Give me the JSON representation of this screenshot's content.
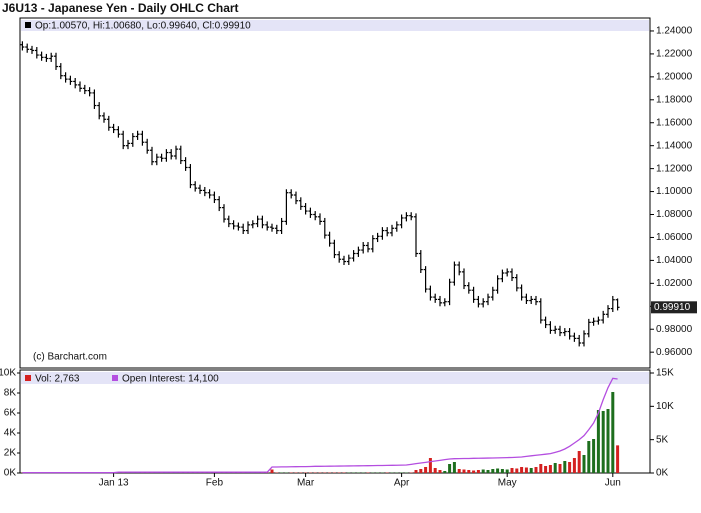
{
  "chart_data": [
    {
      "type": "ohlc",
      "title": "J6U13 - Japanese Yen - Daily OHLC Chart",
      "legend_text": "Op:1.00570, Hi:1.00680, Lo:0.99640, Cl:0.99910",
      "credit": "(c) Barchart.com",
      "last_price_label": "0.99910",
      "color": "#000000",
      "ylim": [
        0.9462,
        1.2513
      ],
      "yticks": [
        {
          "value": 0.96,
          "label": "0.96000"
        },
        {
          "value": 0.98,
          "label": "0.98000"
        },
        {
          "value": 1.0,
          "label": "1.00000"
        },
        {
          "value": 1.02,
          "label": "1.02000"
        },
        {
          "value": 1.04,
          "label": "1.04000"
        },
        {
          "value": 1.06,
          "label": "1.06000"
        },
        {
          "value": 1.08,
          "label": "1.08000"
        },
        {
          "value": 1.1,
          "label": "1.10000"
        },
        {
          "value": 1.12,
          "label": "1.12000"
        },
        {
          "value": 1.14,
          "label": "1.14000"
        },
        {
          "value": 1.16,
          "label": "1.16000"
        },
        {
          "value": 1.18,
          "label": "1.18000"
        },
        {
          "value": 1.2,
          "label": "1.20000"
        },
        {
          "value": 1.22,
          "label": "1.22000"
        },
        {
          "value": 1.24,
          "label": "1.24000"
        }
      ],
      "open": [
        1.228,
        1.226,
        1.224,
        1.223,
        1.219,
        1.217,
        1.216,
        1.218,
        1.209,
        1.201,
        1.198,
        1.196,
        1.193,
        1.19,
        1.188,
        1.186,
        1.175,
        1.166,
        1.163,
        1.156,
        1.154,
        1.15,
        1.14,
        1.142,
        1.148,
        1.15,
        1.143,
        1.136,
        1.126,
        1.13,
        1.129,
        1.134,
        1.131,
        1.137,
        1.127,
        1.121,
        1.106,
        1.103,
        1.101,
        1.099,
        1.097,
        1.093,
        1.086,
        1.076,
        1.072,
        1.07,
        1.069,
        1.066,
        1.071,
        1.072,
        1.076,
        1.071,
        1.069,
        1.068,
        1.066,
        1.074,
        1.099,
        1.097,
        1.092,
        1.087,
        1.083,
        1.08,
        1.078,
        1.074,
        1.062,
        1.055,
        1.045,
        1.041,
        1.039,
        1.042,
        1.046,
        1.049,
        1.053,
        1.05,
        1.059,
        1.061,
        1.066,
        1.064,
        1.068,
        1.071,
        1.077,
        1.079,
        1.078,
        1.046,
        1.032,
        1.015,
        1.008,
        1.006,
        1.003,
        1.004,
        1.021,
        1.036,
        1.03,
        1.018,
        1.014,
        1.006,
        1.002,
        1.004,
        1.008,
        1.014,
        1.024,
        1.029,
        1.03,
        1.025,
        1.016,
        1.008,
        1.005,
        1.006,
        1.004,
        0.988,
        0.984,
        0.979,
        0.98,
        0.977,
        0.978,
        0.974,
        0.972,
        0.968,
        0.976,
        0.986,
        0.987,
        0.988,
        0.993,
        0.998,
        1.0057
      ],
      "high": [
        1.231,
        1.229,
        1.227,
        1.226,
        1.222,
        1.22,
        1.221,
        1.221,
        1.212,
        1.204,
        1.201,
        1.199,
        1.196,
        1.193,
        1.191,
        1.189,
        1.178,
        1.169,
        1.166,
        1.159,
        1.157,
        1.153,
        1.145,
        1.151,
        1.153,
        1.153,
        1.146,
        1.139,
        1.133,
        1.133,
        1.137,
        1.137,
        1.14,
        1.14,
        1.13,
        1.124,
        1.109,
        1.106,
        1.104,
        1.102,
        1.1,
        1.096,
        1.089,
        1.079,
        1.075,
        1.073,
        1.072,
        1.074,
        1.075,
        1.079,
        1.079,
        1.074,
        1.072,
        1.071,
        1.077,
        1.102,
        1.102,
        1.1,
        1.095,
        1.09,
        1.086,
        1.083,
        1.081,
        1.077,
        1.065,
        1.058,
        1.048,
        1.044,
        1.045,
        1.049,
        1.052,
        1.056,
        1.056,
        1.062,
        1.064,
        1.069,
        1.069,
        1.071,
        1.074,
        1.08,
        1.082,
        1.082,
        1.081,
        1.049,
        1.035,
        1.018,
        1.011,
        1.009,
        1.007,
        1.024,
        1.039,
        1.039,
        1.033,
        1.021,
        1.017,
        1.009,
        1.007,
        1.011,
        1.017,
        1.027,
        1.032,
        1.033,
        1.033,
        1.028,
        1.019,
        1.011,
        1.009,
        1.009,
        1.007,
        0.991,
        0.987,
        0.983,
        0.983,
        0.981,
        0.981,
        0.977,
        0.975,
        0.979,
        0.989,
        0.99,
        0.991,
        0.996,
        1.001,
        1.009,
        1.0068
      ],
      "low": [
        1.223,
        1.221,
        1.22,
        1.216,
        1.214,
        1.213,
        1.213,
        1.206,
        1.198,
        1.195,
        1.193,
        1.19,
        1.187,
        1.185,
        1.183,
        1.172,
        1.163,
        1.16,
        1.153,
        1.151,
        1.147,
        1.137,
        1.137,
        1.139,
        1.145,
        1.14,
        1.133,
        1.123,
        1.123,
        1.126,
        1.126,
        1.128,
        1.128,
        1.124,
        1.118,
        1.103,
        1.1,
        1.098,
        1.096,
        1.094,
        1.09,
        1.083,
        1.073,
        1.069,
        1.067,
        1.066,
        1.063,
        1.063,
        1.068,
        1.069,
        1.068,
        1.066,
        1.065,
        1.063,
        1.063,
        1.071,
        1.094,
        1.089,
        1.084,
        1.08,
        1.077,
        1.075,
        1.071,
        1.059,
        1.052,
        1.042,
        1.038,
        1.036,
        1.036,
        1.039,
        1.043,
        1.046,
        1.047,
        1.047,
        1.056,
        1.058,
        1.061,
        1.061,
        1.065,
        1.068,
        1.074,
        1.075,
        1.043,
        1.029,
        1.012,
        1.005,
        1.003,
        1.0,
        1.0,
        1.001,
        1.018,
        1.027,
        1.015,
        1.011,
        1.003,
        0.999,
        0.999,
        1.001,
        1.005,
        1.011,
        1.021,
        1.026,
        1.022,
        1.013,
        1.005,
        1.002,
        1.002,
        1.001,
        0.985,
        0.981,
        0.976,
        0.976,
        0.974,
        0.974,
        0.971,
        0.969,
        0.965,
        0.965,
        0.973,
        0.983,
        0.984,
        0.985,
        0.99,
        0.995,
        0.9964
      ],
      "close": [
        1.226,
        1.224,
        1.223,
        1.219,
        1.217,
        1.216,
        1.218,
        1.209,
        1.201,
        1.198,
        1.196,
        1.193,
        1.19,
        1.188,
        1.186,
        1.175,
        1.166,
        1.163,
        1.156,
        1.154,
        1.15,
        1.14,
        1.142,
        1.148,
        1.15,
        1.143,
        1.136,
        1.126,
        1.13,
        1.129,
        1.134,
        1.131,
        1.137,
        1.127,
        1.121,
        1.106,
        1.103,
        1.101,
        1.099,
        1.097,
        1.093,
        1.086,
        1.076,
        1.072,
        1.07,
        1.069,
        1.066,
        1.071,
        1.072,
        1.076,
        1.071,
        1.069,
        1.068,
        1.066,
        1.074,
        1.099,
        1.097,
        1.092,
        1.087,
        1.083,
        1.08,
        1.078,
        1.074,
        1.062,
        1.055,
        1.045,
        1.041,
        1.039,
        1.042,
        1.046,
        1.049,
        1.053,
        1.05,
        1.059,
        1.061,
        1.066,
        1.064,
        1.068,
        1.071,
        1.077,
        1.079,
        1.078,
        1.046,
        1.032,
        1.015,
        1.008,
        1.006,
        1.003,
        1.004,
        1.021,
        1.036,
        1.03,
        1.018,
        1.014,
        1.006,
        1.002,
        1.004,
        1.008,
        1.014,
        1.024,
        1.029,
        1.03,
        1.025,
        1.016,
        1.008,
        1.005,
        1.006,
        1.004,
        0.988,
        0.984,
        0.979,
        0.98,
        0.977,
        0.978,
        0.974,
        0.972,
        0.968,
        0.976,
        0.986,
        0.987,
        0.988,
        0.993,
        0.998,
        1.0057,
        0.9991
      ]
    },
    {
      "type": "bar",
      "categories": [
        null,
        null,
        null,
        null,
        null,
        null,
        null,
        null,
        null,
        null,
        null,
        null,
        null,
        null,
        null,
        null,
        null,
        null,
        null,
        "Jan 13",
        null,
        null,
        null,
        null,
        null,
        null,
        null,
        null,
        null,
        null,
        null,
        null,
        null,
        null,
        null,
        null,
        null,
        null,
        null,
        null,
        "Feb",
        null,
        null,
        null,
        null,
        null,
        null,
        null,
        null,
        null,
        null,
        null,
        null,
        null,
        null,
        null,
        null,
        null,
        null,
        "Mar",
        null,
        null,
        null,
        null,
        null,
        null,
        null,
        null,
        null,
        null,
        null,
        null,
        null,
        null,
        null,
        null,
        null,
        null,
        null,
        "Apr",
        null,
        null,
        null,
        null,
        null,
        null,
        null,
        null,
        null,
        null,
        null,
        null,
        null,
        null,
        null,
        null,
        null,
        null,
        null,
        null,
        null,
        "May",
        null,
        null,
        null,
        null,
        null,
        null,
        null,
        null,
        null,
        null,
        null,
        null,
        null,
        null,
        null,
        null,
        null,
        null,
        null,
        null,
        null,
        "Jun",
        null
      ],
      "ylim": [
        0,
        10300
      ],
      "yticks": [
        {
          "value": 0,
          "label": "0K"
        },
        {
          "value": 2000,
          "label": "2K"
        },
        {
          "value": 4000,
          "label": "4K"
        },
        {
          "value": 6000,
          "label": "6K"
        },
        {
          "value": 8000,
          "label": "8K"
        },
        {
          "value": 10000,
          "label": "10K"
        }
      ],
      "y2lim": [
        0,
        15450
      ],
      "y2ticks": [
        {
          "value": 0,
          "label": "0K"
        },
        {
          "value": 5000,
          "label": "5K"
        },
        {
          "value": 10000,
          "label": "10K"
        },
        {
          "value": 15000,
          "label": "15K"
        }
      ],
      "series": [
        {
          "name": "Vol: 2,763",
          "type": "bar",
          "color": "#d42020",
          "up_color": "#1d6e1d",
          "values": [
            20,
            20,
            20,
            20,
            20,
            20,
            20,
            20,
            20,
            20,
            20,
            20,
            20,
            20,
            20,
            20,
            20,
            20,
            20,
            20,
            20,
            20,
            20,
            20,
            20,
            20,
            20,
            20,
            20,
            20,
            20,
            20,
            20,
            20,
            20,
            20,
            20,
            20,
            20,
            20,
            20,
            20,
            20,
            20,
            20,
            20,
            20,
            20,
            20,
            20,
            30,
            40,
            350,
            40,
            40,
            40,
            40,
            40,
            40,
            40,
            40,
            40,
            40,
            40,
            40,
            40,
            40,
            40,
            40,
            40,
            40,
            40,
            40,
            40,
            40,
            40,
            40,
            40,
            40,
            40,
            40,
            40,
            300,
            400,
            600,
            1500,
            500,
            300,
            200,
            900,
            1100,
            400,
            350,
            300,
            250,
            300,
            350,
            300,
            400,
            450,
            400,
            350,
            500,
            450,
            600,
            550,
            500,
            600,
            900,
            700,
            800,
            1000,
            900,
            1200,
            1100,
            1500,
            2200,
            1800,
            3200,
            3400,
            6300,
            6200,
            6400,
            8100,
            2763
          ]
        },
        {
          "name": "Open Interest: 14,100",
          "type": "line",
          "axis": "y2",
          "color": "#b44ee0",
          "values": [
            60,
            60,
            60,
            60,
            60,
            60,
            60,
            60,
            60,
            60,
            60,
            60,
            60,
            60,
            60,
            60,
            60,
            60,
            60,
            60,
            120,
            120,
            120,
            120,
            120,
            120,
            120,
            120,
            120,
            120,
            120,
            120,
            120,
            120,
            120,
            120,
            120,
            120,
            120,
            120,
            120,
            120,
            120,
            120,
            120,
            120,
            120,
            120,
            120,
            120,
            120,
            120,
            900,
            900,
            920,
            920,
            940,
            950,
            960,
            960,
            980,
            1000,
            1000,
            1010,
            1020,
            1030,
            1040,
            1050,
            1060,
            1070,
            1080,
            1090,
            1100,
            1110,
            1120,
            1130,
            1140,
            1150,
            1160,
            1180,
            1200,
            1300,
            1400,
            1500,
            1600,
            1700,
            1800,
            1900,
            2000,
            2100,
            2150,
            2160,
            2170,
            2180,
            2200,
            2210,
            2220,
            2240,
            2250,
            2270,
            2290,
            2310,
            2330,
            2360,
            2400,
            2500,
            2580,
            2660,
            2740,
            2820,
            2900,
            3100,
            3300,
            3600,
            4000,
            4500,
            5000,
            5600,
            6500,
            7500,
            9000,
            11000,
            12800,
            14200,
            14100
          ]
        }
      ]
    }
  ]
}
